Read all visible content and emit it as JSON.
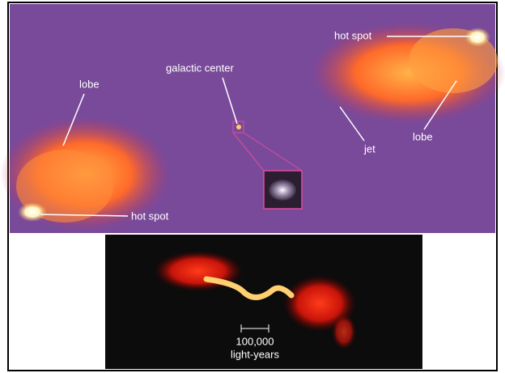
{
  "labels": {
    "lobe_left": "lobe",
    "galactic_center": "galactic center",
    "hot_spot_top": "hot spot",
    "hot_spot_bottom": "hot spot",
    "jet": "jet",
    "lobe_right": "lobe"
  },
  "scale_bar": {
    "distance": "100,000",
    "unit": "light-years"
  }
}
